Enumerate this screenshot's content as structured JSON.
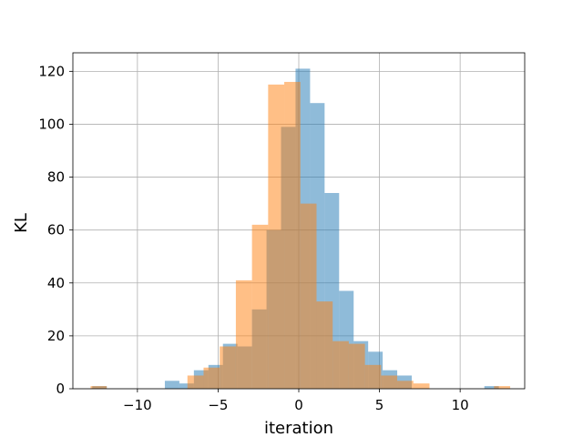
{
  "chart_data": {
    "type": "bar",
    "title": "",
    "xlabel": "iteration",
    "ylabel": "KL",
    "xlim": [
      -14.0,
      14.0
    ],
    "ylim": [
      0,
      127
    ],
    "grid": true,
    "legend": "none",
    "x_ticks": [
      -10,
      -5,
      0,
      5,
      10
    ],
    "x_tick_labels": [
      "−10",
      "−5",
      "0",
      "5",
      "10"
    ],
    "y_ticks": [
      0,
      20,
      40,
      60,
      80,
      100,
      120
    ],
    "y_tick_labels": [
      "0",
      "20",
      "40",
      "60",
      "80",
      "100",
      "120"
    ],
    "series": [
      {
        "color": "#1f77b4",
        "opacity": 0.5,
        "bin_edges": [
          -12.8,
          -11.9,
          -11.0,
          -10.1,
          -9.2,
          -8.3,
          -7.4,
          -6.5,
          -5.6,
          -4.7,
          -3.8,
          -2.9,
          -2.0,
          -1.1,
          -0.2,
          0.7,
          1.6,
          2.5,
          3.4,
          4.3,
          5.2,
          6.1,
          7.0,
          7.9,
          8.8,
          9.7,
          10.6,
          11.5,
          12.4
        ],
        "counts": [
          1,
          0,
          0,
          0,
          0,
          3,
          2,
          7,
          9,
          17,
          16,
          30,
          60,
          99,
          121,
          108,
          74,
          37,
          18,
          14,
          7,
          5,
          0,
          0,
          0,
          0,
          0,
          1
        ]
      },
      {
        "color": "#ff7f0e",
        "opacity": 0.5,
        "bin_edges": [
          -12.9,
          -11.9,
          -10.9,
          -9.9,
          -8.9,
          -7.9,
          -6.9,
          -5.9,
          -4.9,
          -3.9,
          -2.9,
          -1.9,
          -0.9,
          0.1,
          1.1,
          2.1,
          3.1,
          4.1,
          5.1,
          6.1,
          7.1,
          8.1,
          9.1,
          10.1,
          11.1,
          12.1,
          13.1
        ],
        "counts": [
          1,
          0,
          0,
          0,
          0,
          0,
          5,
          8,
          16,
          41,
          62,
          115,
          116,
          70,
          33,
          18,
          17,
          9,
          5,
          3,
          2,
          0,
          0,
          0,
          0,
          1
        ]
      }
    ]
  }
}
